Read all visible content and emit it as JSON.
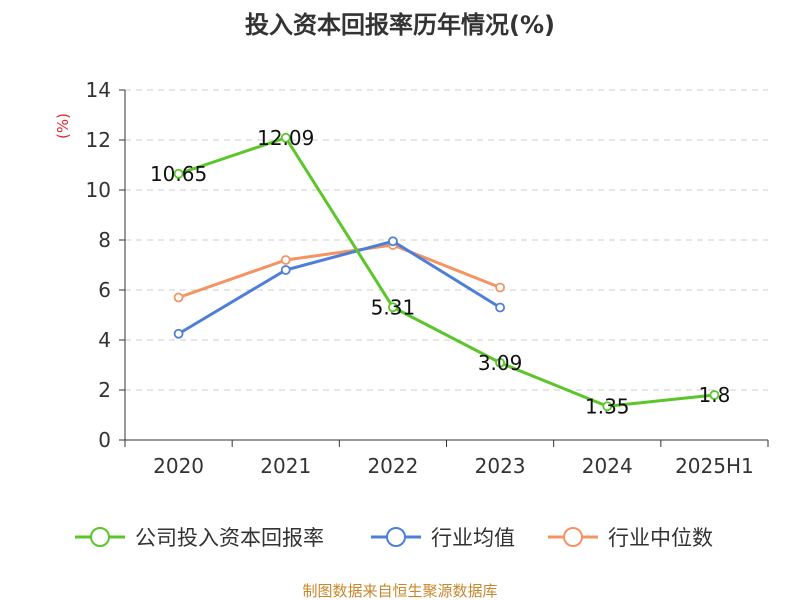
{
  "chart_data": {
    "type": "line",
    "title": "投入资本回报率历年情况(%)",
    "y_unit": "(%)",
    "categories": [
      "2020",
      "2021",
      "2022",
      "2023",
      "2024",
      "2025H1"
    ],
    "ylim": [
      0,
      14
    ],
    "yticks": [
      0,
      2,
      4,
      6,
      8,
      10,
      12,
      14
    ],
    "grid": true,
    "legend_position": "bottom",
    "series": [
      {
        "name": "公司投入资本回报率",
        "color": "#5ac629",
        "values": [
          10.65,
          12.09,
          5.31,
          3.09,
          1.35,
          1.8
        ],
        "labels": [
          "10.65",
          "12.09",
          "5.31",
          "3.09",
          "1.35",
          "1.8"
        ]
      },
      {
        "name": "行业均值",
        "color": "#4e7fd8",
        "values": [
          4.25,
          6.8,
          7.95,
          5.3,
          null,
          null
        ]
      },
      {
        "name": "行业中位数",
        "color": "#f59363",
        "values": [
          5.7,
          7.2,
          7.8,
          6.1,
          null,
          null
        ]
      }
    ]
  },
  "footer": {
    "source": "制图数据来自恒生聚源数据库"
  }
}
